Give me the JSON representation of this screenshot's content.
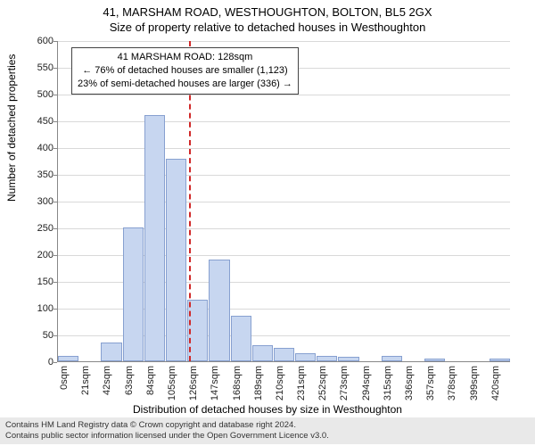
{
  "title": {
    "line1": "41, MARSHAM ROAD, WESTHOUGHTON, BOLTON, BL5 2GX",
    "line2": "Size of property relative to detached houses in Westhoughton"
  },
  "chart": {
    "type": "histogram",
    "y": {
      "label": "Number of detached properties",
      "min": 0,
      "max": 600,
      "step": 50,
      "grid_color": "#d9d9d9",
      "axis_color": "#888888"
    },
    "x": {
      "label": "Distribution of detached houses by size in Westhoughton",
      "tick_step_sqm": 21,
      "tick_count": 21,
      "unit_suffix": "sqm"
    },
    "bar_fill": "#c7d6f0",
    "bar_border": "#87a0d0",
    "background_color": "#ffffff",
    "values": [
      10,
      0,
      35,
      250,
      460,
      378,
      115,
      190,
      85,
      30,
      25,
      15,
      10,
      8,
      0,
      10,
      0,
      5,
      0,
      0,
      5
    ],
    "marker": {
      "sqm": 128,
      "color": "#d02828",
      "dash": true
    },
    "annotation": {
      "lines": [
        "41 MARSHAM ROAD: 128sqm",
        "← 76% of detached houses are smaller (1,123)",
        "23% of semi-detached houses are larger (336) →"
      ],
      "border_color": "#444444",
      "bg": "#ffffff",
      "fontsize": 11
    }
  },
  "footer": {
    "line1": "Contains HM Land Registry data © Crown copyright and database right 2024.",
    "line2": "Contains public sector information licensed under the Open Government Licence v3.0."
  }
}
